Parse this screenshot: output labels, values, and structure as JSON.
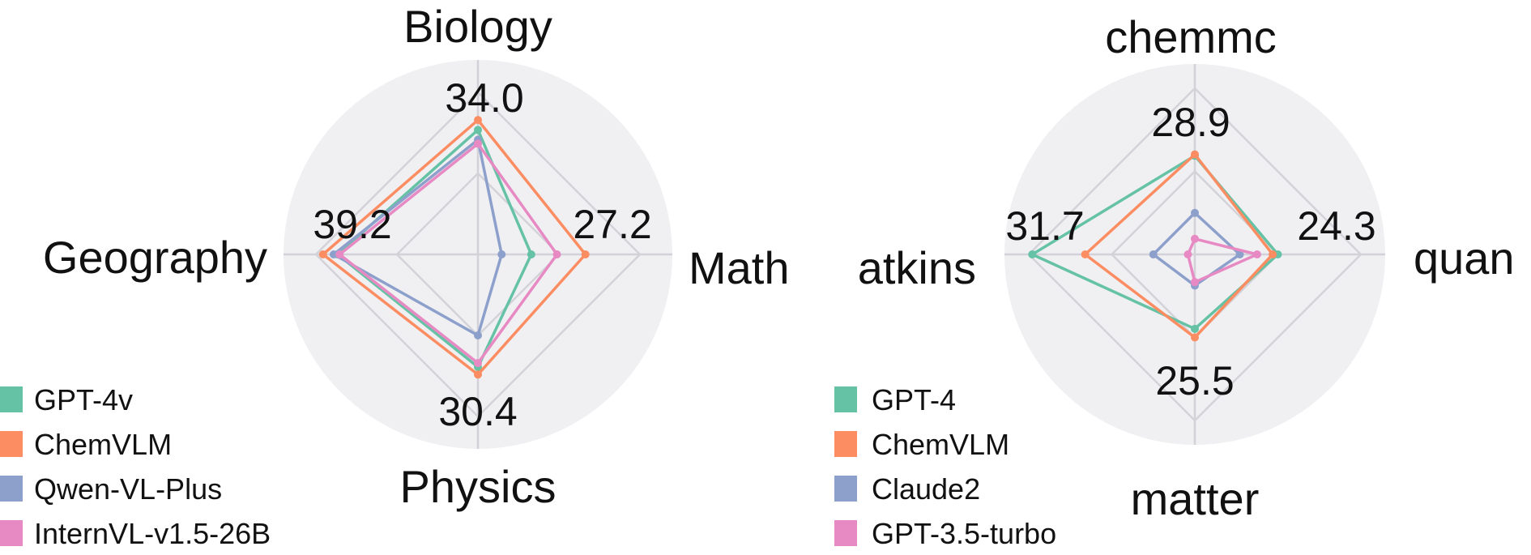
{
  "chart_data": [
    {
      "type": "radar",
      "title": "",
      "axes": [
        "Biology",
        "Math",
        "Physics",
        "Geography"
      ],
      "axis_max_values": [
        34.0,
        27.2,
        30.4,
        39.2
      ],
      "grid": true,
      "legend_position": "bottom-left",
      "series": [
        {
          "name": "GPT-4v",
          "color": "#66c2a5",
          "values": [
            31.5,
            13.5,
            28.5,
            35.5
          ]
        },
        {
          "name": "ChemVLM",
          "color": "#fc8d62",
          "values": [
            34.0,
            27.2,
            30.4,
            39.2
          ]
        },
        {
          "name": "Qwen-VL-Plus",
          "color": "#8da0cb",
          "values": [
            29.0,
            6.0,
            20.5,
            36.5
          ]
        },
        {
          "name": "InternVL-v1.5-26B",
          "color": "#e78ac3",
          "values": [
            28.0,
            20.0,
            27.5,
            35.0
          ]
        }
      ]
    },
    {
      "type": "radar",
      "title": "",
      "axes": [
        "chemmc",
        "quan",
        "matter",
        "atkins"
      ],
      "axis_max_values": [
        28.9,
        24.3,
        25.5,
        31.7
      ],
      "grid": true,
      "legend_position": "bottom-left",
      "series": [
        {
          "name": "GPT-4",
          "color": "#66c2a5",
          "values": [
            28.5,
            24.0,
            21.5,
            47.0
          ]
        },
        {
          "name": "ChemVLM",
          "color": "#fc8d62",
          "values": [
            28.9,
            22.5,
            24.0,
            31.7
          ]
        },
        {
          "name": "Claude2",
          "color": "#8da0cb",
          "values": [
            12.0,
            13.0,
            9.0,
            12.0
          ]
        },
        {
          "name": "GPT-3.5-turbo",
          "color": "#e78ac3",
          "values": [
            4.5,
            18.0,
            8.0,
            2.0
          ]
        }
      ]
    }
  ]
}
